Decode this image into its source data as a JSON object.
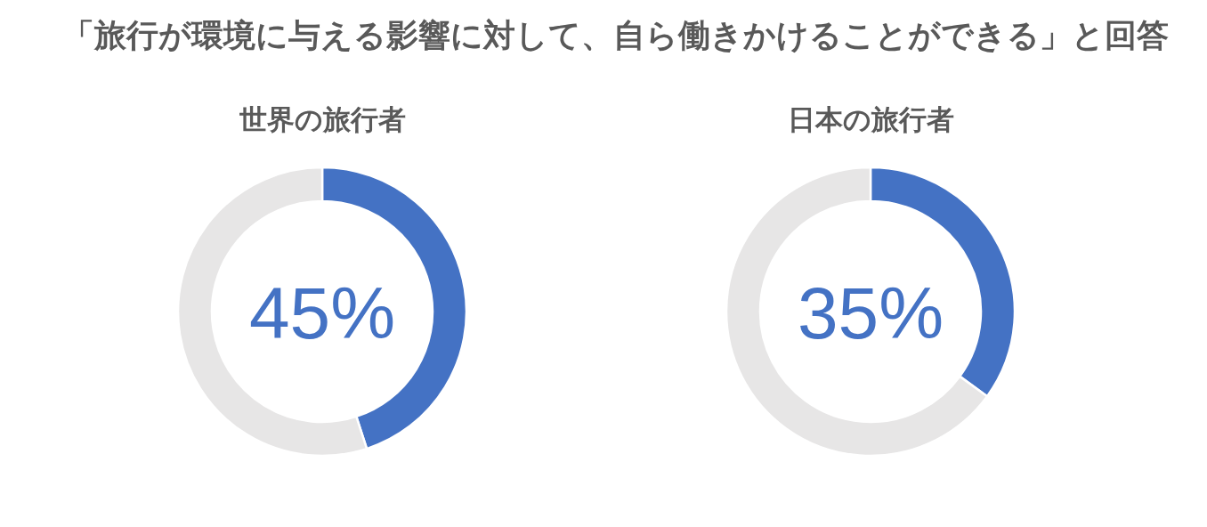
{
  "chart_data": [
    {
      "type": "other",
      "title": "「旅行が環境に与える影響に対して、自ら働きかけることができる」と回答"
    },
    {
      "type": "donut",
      "title": "世界の旅行者",
      "categories": [
        null,
        null
      ],
      "values": [
        45,
        55
      ],
      "colors": [
        "#4472c4",
        "#e7e6e6"
      ],
      "annotations": [
        "45%"
      ]
    },
    {
      "type": "donut",
      "title": "日本の旅行者",
      "categories": [
        null,
        null
      ],
      "values": [
        35,
        65
      ],
      "colors": [
        "#4472c4",
        "#e7e6e6"
      ],
      "annotations": [
        "35%"
      ]
    }
  ]
}
